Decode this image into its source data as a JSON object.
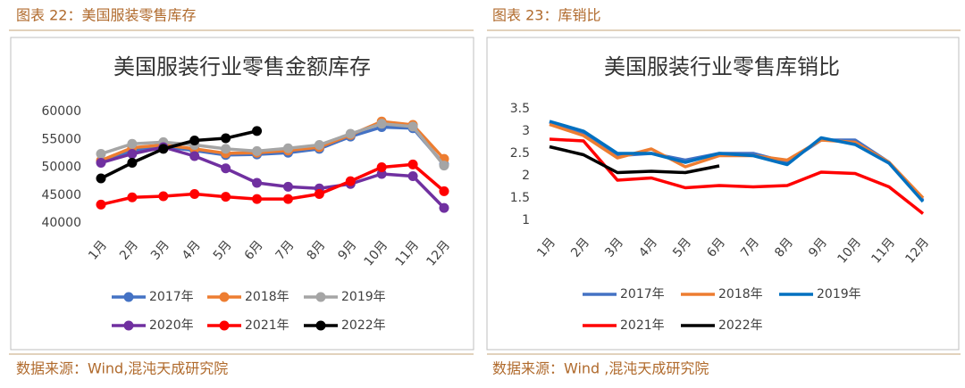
{
  "chart_data": [
    {
      "type": "line",
      "caption": "图表 22：美国服装零售库存",
      "source": "数据来源：Wind,混沌天成研究院",
      "title": "美国服装行业零售金额库存",
      "markers": true,
      "categories": [
        "1月",
        "2月",
        "3月",
        "4月",
        "5月",
        "6月",
        "7月",
        "8月",
        "9月",
        "10月",
        "11月",
        "12月"
      ],
      "ylim": [
        40000,
        60000
      ],
      "yticks": [
        40000,
        45000,
        50000,
        55000,
        60000
      ],
      "grid": false,
      "series": [
        {
          "name": "2017年",
          "color": "#4472c4",
          "values": [
            51000,
            53000,
            53700,
            53000,
            52200,
            52300,
            52600,
            53300,
            55500,
            57200,
            57000,
            50500
          ]
        },
        {
          "name": "2018年",
          "color": "#ed7d31",
          "values": [
            51200,
            53500,
            54000,
            53300,
            52500,
            52600,
            53000,
            53600,
            55800,
            58200,
            57600,
            51500
          ]
        },
        {
          "name": "2019年",
          "color": "#a5a5a5",
          "values": [
            52400,
            54200,
            54500,
            54000,
            53300,
            52900,
            53400,
            54000,
            56000,
            57800,
            57300,
            50300
          ]
        },
        {
          "name": "2020年",
          "color": "#7030a0",
          "values": [
            50800,
            52400,
            53600,
            52000,
            49800,
            47200,
            46500,
            46200,
            47000,
            48800,
            48400,
            42700
          ]
        },
        {
          "name": "2021年",
          "color": "#ff0000",
          "values": [
            43300,
            44600,
            44800,
            45200,
            44700,
            44300,
            44300,
            45200,
            47500,
            50000,
            50500,
            45700
          ]
        },
        {
          "name": "2022年",
          "color": "#000000",
          "values": [
            48000,
            50800,
            53300,
            54800,
            55200,
            56500,
            null,
            null,
            null,
            null,
            null,
            null
          ]
        }
      ]
    },
    {
      "type": "line",
      "caption": "图表 23：库销比",
      "source": "数据来源：Wind ,混沌天成研究院",
      "title": "美国服装行业零售库销比",
      "markers": false,
      "categories": [
        "1月",
        "2月",
        "3月",
        "4月",
        "5月",
        "6月",
        "7月",
        "8月",
        "9月",
        "10月",
        "11月",
        "12月"
      ],
      "ylim": [
        1,
        3.5
      ],
      "yticks": [
        1,
        1.5,
        2,
        2.5,
        3,
        3.5
      ],
      "grid": false,
      "series": [
        {
          "name": "2017年",
          "color": "#4472c4",
          "values": [
            3.2,
            2.95,
            2.45,
            2.5,
            2.35,
            2.5,
            2.5,
            2.3,
            2.8,
            2.8,
            2.3,
            1.45
          ]
        },
        {
          "name": "2018年",
          "color": "#ed7d31",
          "values": [
            3.15,
            2.9,
            2.4,
            2.6,
            2.2,
            2.45,
            2.45,
            2.35,
            2.8,
            2.75,
            2.3,
            1.5
          ]
        },
        {
          "name": "2019年",
          "color": "#0070c0",
          "values": [
            3.22,
            3.0,
            2.5,
            2.5,
            2.3,
            2.5,
            2.45,
            2.25,
            2.85,
            2.7,
            2.28,
            1.42
          ]
        },
        {
          "name": "2021年",
          "color": "#ff0000",
          "values": [
            2.82,
            2.78,
            1.9,
            1.95,
            1.73,
            1.78,
            1.75,
            1.78,
            2.08,
            2.05,
            1.75,
            1.15
          ]
        },
        {
          "name": "2022年",
          "color": "#000000",
          "values": [
            2.65,
            2.47,
            2.07,
            2.1,
            2.07,
            2.22,
            null,
            null,
            null,
            null,
            null,
            null
          ]
        }
      ]
    }
  ]
}
